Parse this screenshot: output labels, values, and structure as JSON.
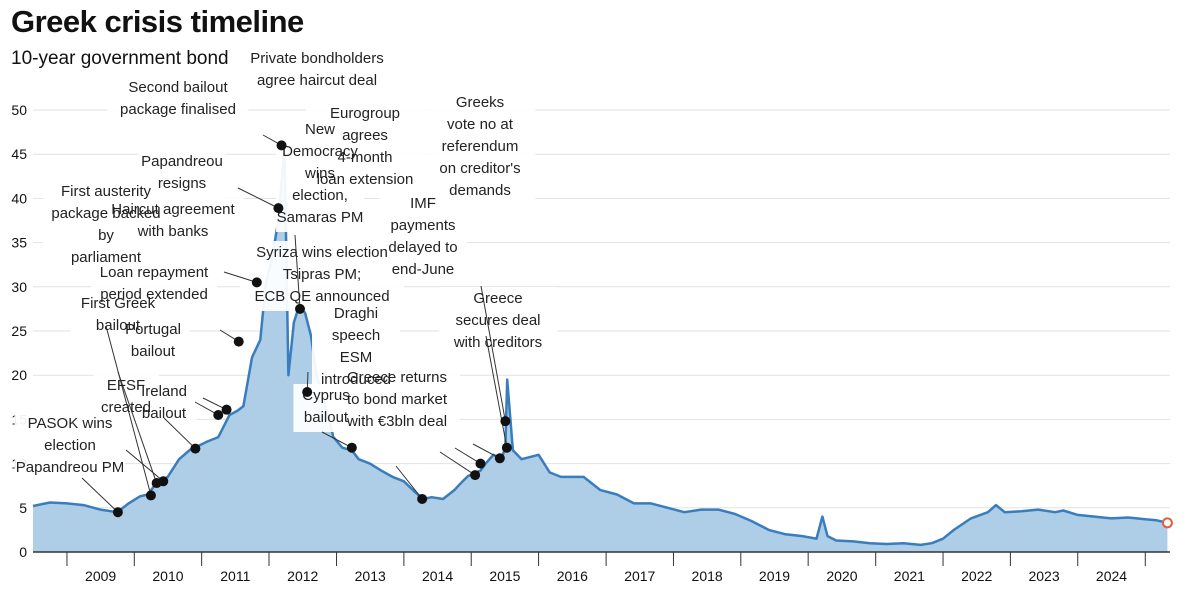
{
  "title": "Greek crisis timeline",
  "subtitle": "10-year government bond",
  "colors": {
    "area": "#aecde6",
    "line": "#3a7dbd",
    "grid": "#e2e2e2",
    "axis": "#333333",
    "dot": "#111111",
    "last_marker": "#e0603a"
  },
  "chart_data": {
    "type": "area",
    "title": "Greek crisis timeline",
    "subtitle": "10-year government bond",
    "xlabel": "",
    "ylabel": "",
    "xlim": [
      "2008-07-01",
      "2025-05-15"
    ],
    "ylim": [
      0,
      50
    ],
    "yticks": [
      0,
      5,
      10,
      15,
      20,
      25,
      30,
      35,
      40,
      45,
      50
    ],
    "xticks": [
      "2009",
      "2010",
      "2011",
      "2012",
      "2013",
      "2014",
      "2015",
      "2016",
      "2017",
      "2018",
      "2019",
      "2020",
      "2021",
      "2022",
      "2023",
      "2024"
    ],
    "grid": true,
    "series": [
      {
        "x": [
          "2008-07-01",
          "2008-10-01",
          "2009-01-01",
          "2009-04-01",
          "2009-07-01",
          "2009-10-01",
          "2009-12-01",
          "2010-02-01",
          "2010-03-15",
          "2010-05-01",
          "2010-07-01",
          "2010-09-01",
          "2010-11-01",
          "2010-12-15",
          "2011-02-01",
          "2011-04-01",
          "2011-06-01",
          "2011-07-15",
          "2011-08-15",
          "2011-10-01",
          "2011-11-15",
          "2011-12-15",
          "2012-01-15",
          "2012-02-01",
          "2012-02-20",
          "2012-03-10",
          "2012-03-25",
          "2012-04-15",
          "2012-05-15",
          "2012-06-15",
          "2012-07-15",
          "2012-08-15",
          "2012-09-15",
          "2012-10-15",
          "2012-11-15",
          "2012-12-15",
          "2013-02-01",
          "2013-03-25",
          "2013-05-01",
          "2013-07-01",
          "2013-09-01",
          "2013-11-01",
          "2014-01-01",
          "2014-03-01",
          "2014-04-15",
          "2014-06-01",
          "2014-08-01",
          "2014-10-01",
          "2014-11-15",
          "2014-12-15",
          "2015-01-25",
          "2015-02-20",
          "2015-03-20",
          "2015-05-01",
          "2015-06-15",
          "2015-07-05",
          "2015-07-15",
          "2015-08-15",
          "2015-10-01",
          "2016-01-01",
          "2016-03-01",
          "2016-05-01",
          "2016-07-01",
          "2016-09-01",
          "2016-12-01",
          "2017-03-01",
          "2017-06-01",
          "2017-09-01",
          "2017-12-01",
          "2018-03-01",
          "2018-06-01",
          "2018-09-01",
          "2018-12-01",
          "2019-03-01",
          "2019-06-01",
          "2019-09-01",
          "2019-12-01",
          "2020-02-15",
          "2020-03-18",
          "2020-04-15",
          "2020-06-01",
          "2020-09-01",
          "2020-12-01",
          "2021-03-01",
          "2021-06-01",
          "2021-09-01",
          "2021-11-01",
          "2022-01-01",
          "2022-03-01",
          "2022-06-01",
          "2022-09-01",
          "2022-10-15",
          "2022-12-01",
          "2023-03-01",
          "2023-06-01",
          "2023-09-01",
          "2023-10-15",
          "2024-01-01",
          "2024-04-01",
          "2024-07-01",
          "2024-10-01",
          "2025-01-01",
          "2025-03-01",
          "2025-05-01"
        ],
        "values": [
          5.2,
          5.6,
          5.5,
          5.3,
          4.8,
          4.5,
          5.5,
          6.3,
          6.5,
          7.8,
          8.5,
          10.5,
          11.6,
          12.0,
          12.5,
          13.0,
          15.5,
          16.0,
          16.5,
          22.0,
          24.0,
          30.5,
          33.0,
          35.0,
          37.5,
          42.0,
          46.0,
          20.0,
          26.0,
          28.0,
          27.0,
          24.5,
          20.0,
          18.0,
          15.5,
          13.0,
          11.8,
          11.5,
          10.5,
          10.0,
          9.2,
          8.5,
          8.0,
          6.8,
          6.0,
          6.2,
          6.0,
          7.0,
          8.0,
          8.6,
          9.0,
          9.2,
          10.0,
          11.0,
          10.5,
          12.0,
          19.5,
          11.5,
          10.5,
          11.0,
          9.0,
          8.5,
          8.5,
          8.5,
          7.0,
          6.5,
          5.5,
          5.5,
          5.0,
          4.5,
          4.8,
          4.8,
          4.3,
          3.5,
          2.5,
          2.0,
          1.8,
          1.5,
          4.0,
          1.8,
          1.3,
          1.2,
          1.0,
          0.9,
          1.0,
          0.8,
          1.0,
          1.5,
          2.5,
          3.8,
          4.5,
          5.3,
          4.5,
          4.6,
          4.8,
          4.5,
          4.7,
          4.2,
          4.0,
          3.8,
          3.9,
          3.7,
          3.6,
          3.3
        ]
      }
    ],
    "events": [
      {
        "date": "2009-10-04",
        "value": 4.5,
        "label": [
          "PASOK wins",
          "election",
          "Papandreou PM"
        ]
      },
      {
        "date": "2010-04-01",
        "value": 6.4,
        "label": [
          "First austerity",
          "package backed",
          "by",
          "parliament"
        ]
      },
      {
        "date": "2010-05-02",
        "value": 7.8,
        "label": [
          "First Greek",
          "bailout"
        ]
      },
      {
        "date": "2010-06-07",
        "value": 8.0,
        "label": [
          "EFSF",
          "created"
        ]
      },
      {
        "date": "2010-11-28",
        "value": 11.7,
        "label": [
          "Ireland",
          "bailout"
        ]
      },
      {
        "date": "2011-04-01",
        "value": 15.5,
        "label": [
          "Loan repayment",
          "period extended"
        ]
      },
      {
        "date": "2011-05-16",
        "value": 16.1,
        "label": [
          "Portugal",
          "bailout"
        ]
      },
      {
        "date": "2011-07-21",
        "value": 23.8,
        "label": [
          "Haircut agreement",
          "with banks"
        ]
      },
      {
        "date": "2011-10-27",
        "value": 30.5,
        "label": [
          "Papandreou",
          "resigns"
        ]
      },
      {
        "date": "2012-02-21",
        "value": 38.9,
        "label": [
          "Second bailout",
          "package finalised"
        ]
      },
      {
        "date": "2012-03-09",
        "value": 46.0,
        "label": [
          "Private bondholders",
          "agree haircut deal"
        ]
      },
      {
        "date": "2012-06-17",
        "value": 27.5,
        "label": [
          "New",
          "Democracy",
          "wins",
          "election,",
          "Samaras PM"
        ]
      },
      {
        "date": "2012-07-26",
        "value": 18.1,
        "label": [
          "Draghi",
          "speech",
          "ESM",
          "introduced"
        ]
      },
      {
        "date": "2013-03-25",
        "value": 11.8,
        "label": [
          "Cyprus",
          "bailout"
        ]
      },
      {
        "date": "2014-04-10",
        "value": 6.0,
        "label": [
          "Greece returns",
          "to bond market",
          "with €3bln deal"
        ]
      },
      {
        "date": "2015-01-22",
        "value": 8.7,
        "label": [
          "Syriza wins election",
          "Tsipras PM;",
          "ECB QE announced"
        ]
      },
      {
        "date": "2015-02-20",
        "value": 10.0,
        "label": [
          "Eurogroup",
          "agrees",
          "4-month",
          "loan extension"
        ]
      },
      {
        "date": "2015-06-05",
        "value": 10.6,
        "label": [
          "IMF",
          "payments",
          "delayed to",
          "end-June"
        ]
      },
      {
        "date": "2015-07-05",
        "value": 14.8,
        "label": [
          "Greeks",
          "vote no at",
          "referendum",
          "on creditor's",
          "demands"
        ]
      },
      {
        "date": "2015-07-13",
        "value": 11.8,
        "label": [
          "Greece",
          "secures deal",
          "with creditors"
        ]
      }
    ]
  }
}
